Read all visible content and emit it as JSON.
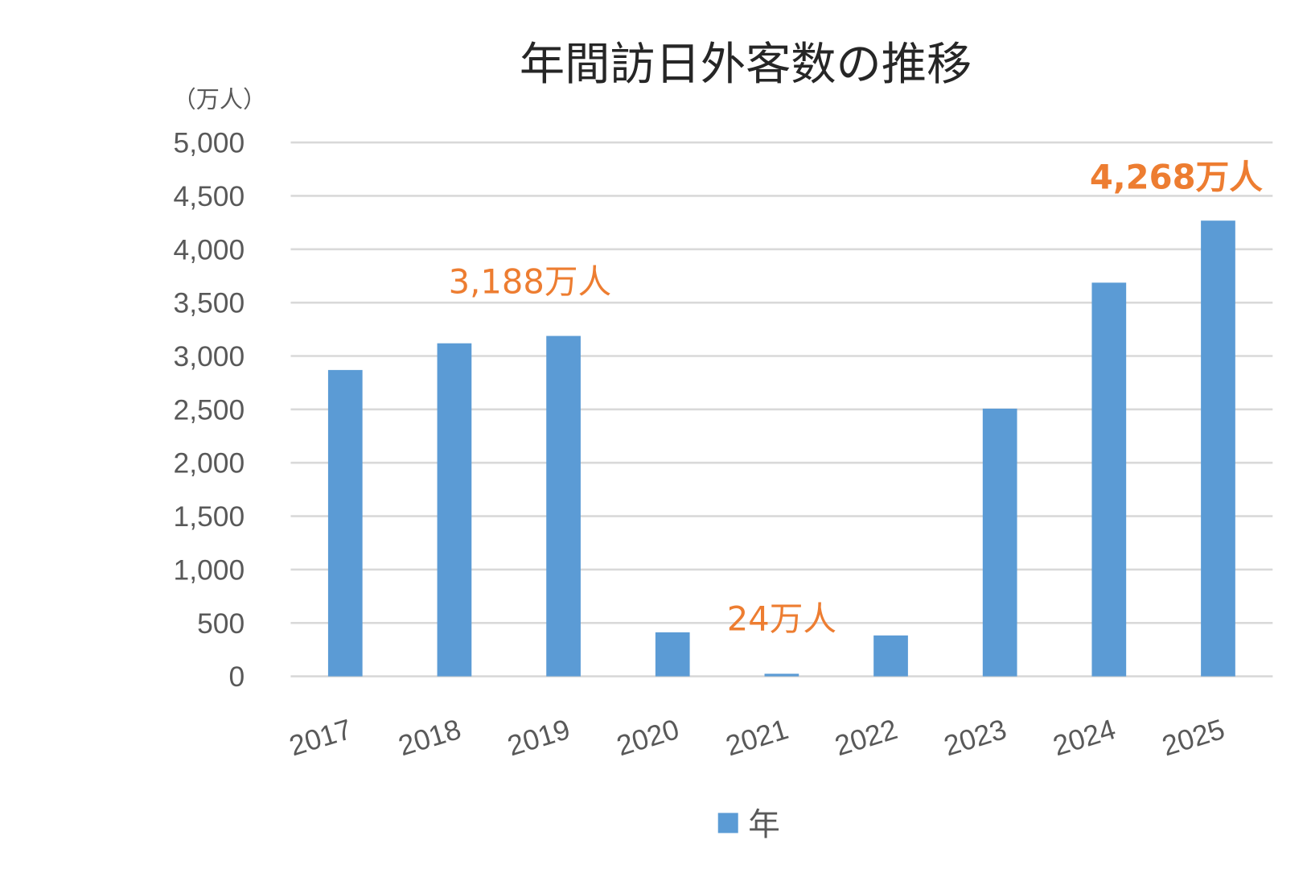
{
  "chart_data": {
    "type": "bar",
    "title": "年間訪日外客数の推移",
    "ylabel": "（万人）",
    "xlabel": "",
    "categories": [
      "2017",
      "2018",
      "2019",
      "2020",
      "2021",
      "2022",
      "2023",
      "2024",
      "2025"
    ],
    "series": [
      {
        "name": "年",
        "values": [
          2869,
          3119,
          3188,
          412,
          24,
          383,
          2507,
          3687,
          4268
        ],
        "color": "#5B9BD5"
      }
    ],
    "ylim": [
      0,
      5000
    ],
    "yticks": [
      0,
      500,
      1000,
      1500,
      2000,
      2500,
      3000,
      3500,
      4000,
      4500,
      5000
    ],
    "ytick_labels": [
      "0",
      "500",
      "1,000",
      "1,500",
      "2,000",
      "2,500",
      "3,000",
      "3,500",
      "4,000",
      "4,500",
      "5,000"
    ],
    "grid": true,
    "legend": "bottom",
    "annotations": [
      {
        "text": "3,188万人",
        "category": "2019",
        "color": "#ED7D31",
        "bold": false
      },
      {
        "text": "24万人",
        "category": "2021",
        "color": "#ED7D31",
        "bold": false
      },
      {
        "text": "4,268万人",
        "category": "2025",
        "color": "#ED7D31",
        "bold": true
      }
    ]
  }
}
